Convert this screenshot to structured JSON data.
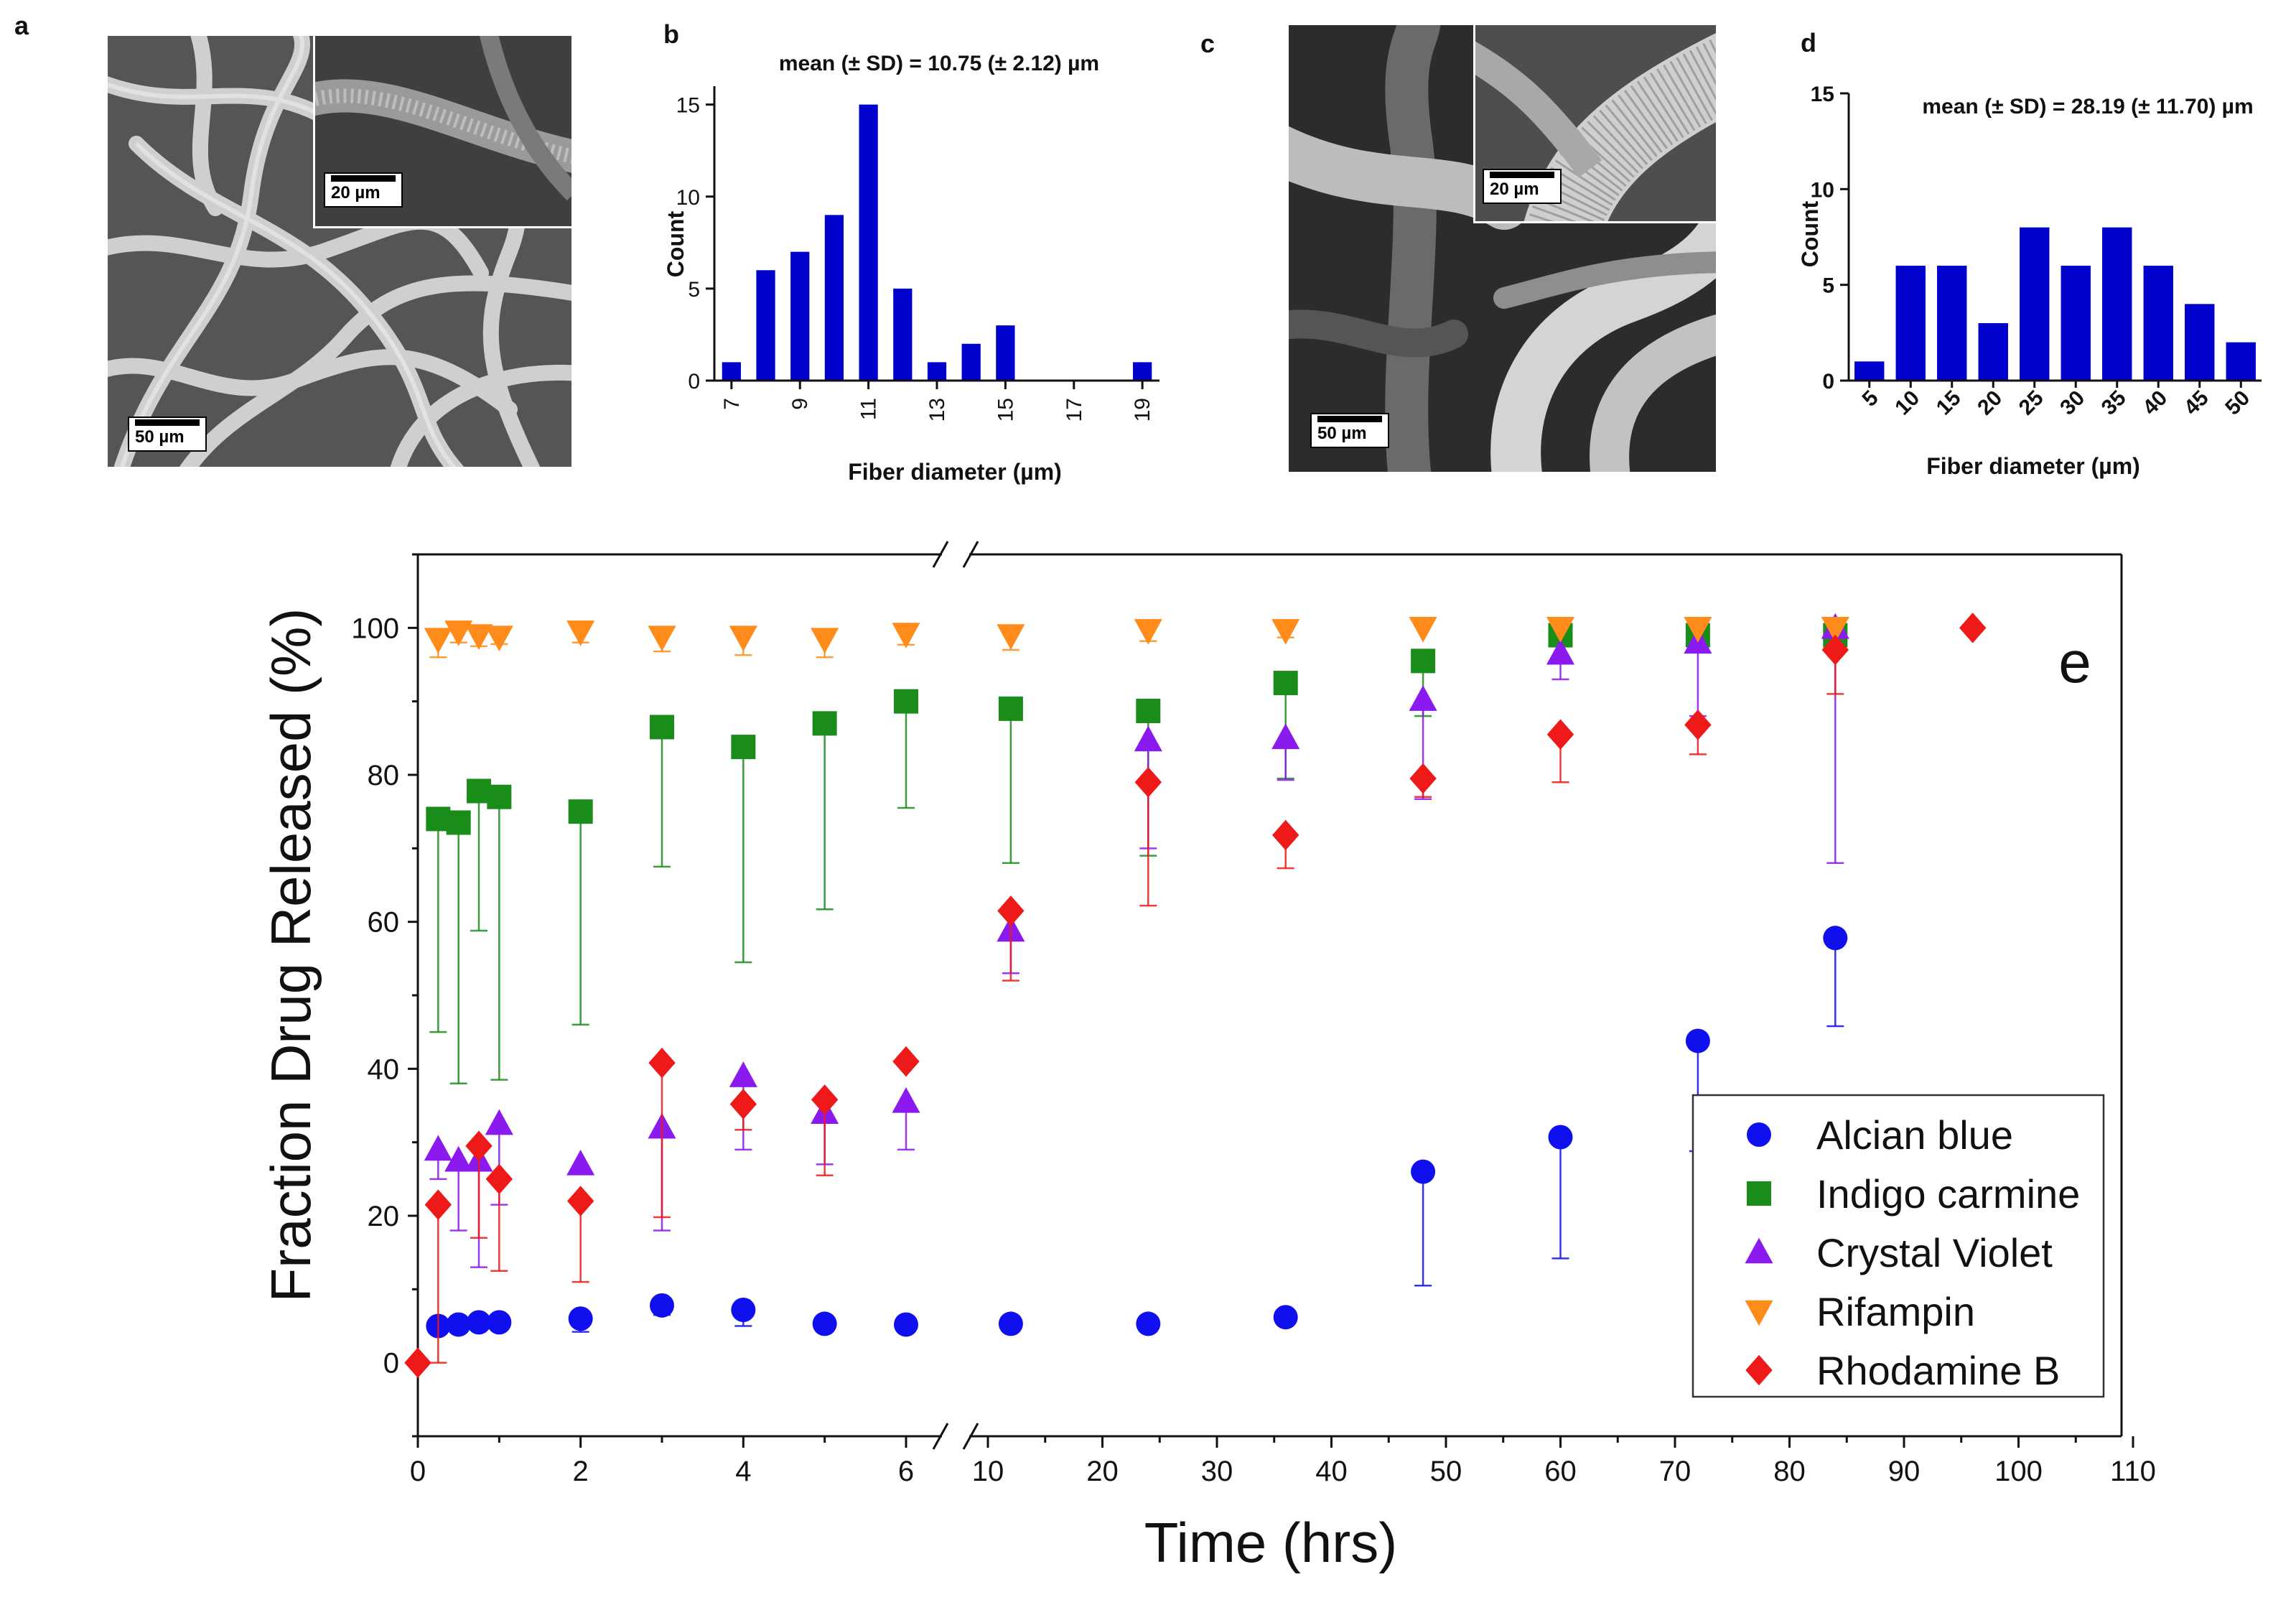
{
  "panels": {
    "a": {
      "letter": "a",
      "main_scale": "50 µm",
      "inset_scale": "20 µm"
    },
    "c": {
      "letter": "c",
      "main_scale": "50 µm",
      "inset_scale": "20 µm"
    }
  },
  "chart_data": [
    {
      "panel": "b",
      "letter": "b",
      "type": "bar",
      "title": "mean (± SD) = 10.75 (± 2.12) µm",
      "xlabel": "Fiber diameter  (µm)",
      "ylabel": "Count",
      "x": [
        7,
        8,
        9,
        10,
        11,
        12,
        13,
        14,
        15,
        16,
        17,
        18,
        19
      ],
      "values": [
        1,
        6,
        7,
        9,
        15,
        5,
        1,
        2,
        3,
        0,
        0,
        0,
        1
      ],
      "xticks": [
        7,
        9,
        11,
        13,
        15,
        17,
        19
      ],
      "yticks": [
        0,
        5,
        10,
        15
      ],
      "ylim": [
        0,
        16
      ],
      "color": "#0000cc"
    },
    {
      "panel": "d",
      "letter": "d",
      "type": "bar",
      "title": "mean (± SD) = 28.19 (± 11.70) µm",
      "xlabel": "Fiber diameter  (µm)",
      "ylabel": "Count",
      "categories": [
        "5",
        "10",
        "15",
        "20",
        "25",
        "30",
        "35",
        "40",
        "45",
        "50"
      ],
      "values": [
        1,
        6,
        6,
        3,
        8,
        6,
        8,
        6,
        4,
        2
      ],
      "yticks": [
        0,
        5,
        10,
        15
      ],
      "ylim": [
        0,
        15
      ],
      "color": "#0000cc"
    },
    {
      "panel": "e",
      "letter": "e",
      "type": "scatter",
      "xlabel": "Time (hrs)",
      "ylabel": "Fraction Drug Released (%)",
      "x_axis_break": {
        "before": 7,
        "after": 10
      },
      "xticks": [
        0,
        2,
        4,
        6,
        10,
        20,
        30,
        40,
        50,
        60,
        70,
        80,
        90,
        100,
        110
      ],
      "xticks_left": [
        0,
        2,
        4,
        6
      ],
      "xticks_right": [
        10,
        20,
        30,
        40,
        50,
        60,
        70,
        80,
        90,
        100,
        110
      ],
      "yticks": [
        0,
        20,
        40,
        60,
        80,
        100
      ],
      "ylim": [
        -10,
        110
      ],
      "legend_position": "bottom-right",
      "series": [
        {
          "name": "Alcian blue",
          "marker": "circle",
          "color": "#1010ee",
          "x": [
            0.25,
            0.5,
            0.75,
            1,
            2,
            3,
            4,
            5,
            6,
            12,
            24,
            36,
            48,
            60,
            72,
            84
          ],
          "y": [
            5,
            5.2,
            5.5,
            5.5,
            6,
            7.8,
            7.2,
            5.3,
            5.2,
            5.3,
            5.3,
            6.2,
            26,
            30.7,
            43.8,
            57.8
          ],
          "err_low": [
            0,
            0,
            0,
            0,
            1.8,
            1.3,
            2.2,
            0,
            0,
            0,
            0,
            0,
            15.5,
            16.5,
            15,
            12
          ],
          "err_high": [
            0,
            0,
            0,
            0,
            0,
            0,
            0,
            0,
            0,
            0,
            0,
            0,
            0,
            0,
            0,
            0
          ]
        },
        {
          "name": "Indigo carmine",
          "marker": "square",
          "color": "#1a8c1a",
          "x": [
            0.25,
            0.5,
            0.75,
            1,
            2,
            3,
            4,
            5,
            6,
            12,
            24,
            36,
            48,
            60,
            72,
            84
          ],
          "y": [
            74,
            73.5,
            77.8,
            77,
            75,
            86.5,
            83.8,
            87,
            90,
            89,
            88.7,
            92.5,
            95.5,
            99,
            99,
            99
          ],
          "err_low": [
            29,
            35.5,
            19,
            38.5,
            29,
            19,
            29.3,
            25.3,
            14.5,
            21,
            19.7,
            13,
            7.5,
            0,
            0,
            0
          ],
          "err_high": [
            0,
            0,
            0,
            0,
            0,
            0,
            0,
            0,
            0,
            0,
            0,
            0,
            0,
            0,
            0,
            0
          ]
        },
        {
          "name": "Crystal Violet",
          "marker": "triangle-up",
          "color": "#8a1aee",
          "x": [
            0.25,
            0.5,
            0.75,
            1,
            2,
            3,
            4,
            5,
            6,
            12,
            24,
            36,
            48,
            60,
            72,
            84
          ],
          "y": [
            29,
            27.5,
            27.5,
            32.5,
            27,
            32,
            39,
            34,
            35.5,
            58.8,
            84.7,
            85,
            90.2,
            96.5,
            98,
            100
          ],
          "err_low": [
            4,
            9.5,
            14.5,
            11,
            0,
            14,
            10,
            7,
            6.5,
            5.8,
            14.7,
            5.7,
            13.5,
            3.5,
            10,
            32
          ],
          "err_high": [
            0,
            0,
            0,
            0,
            0,
            0,
            0,
            0,
            0,
            0,
            0,
            0,
            0,
            0,
            0,
            0
          ]
        },
        {
          "name": "Rifampin",
          "marker": "triangle-down",
          "color": "#ff8c1a",
          "x": [
            0.25,
            0.5,
            0.75,
            1,
            2,
            3,
            4,
            5,
            6,
            12,
            24,
            36,
            48,
            60,
            72,
            84
          ],
          "y": [
            98.5,
            99.5,
            99,
            98.8,
            99.5,
            98.8,
            98.8,
            98.5,
            99.2,
            99,
            99.7,
            99.7,
            100,
            100,
            100,
            100
          ],
          "err_low": [
            2.5,
            1.5,
            1.5,
            1,
            1.5,
            2,
            2.5,
            2.5,
            1.5,
            2,
            1.5,
            1,
            0,
            0,
            0,
            0
          ],
          "err_high": [
            0,
            0,
            0,
            0,
            0,
            0,
            0,
            0,
            0,
            0,
            0,
            0,
            0,
            0,
            0,
            0
          ]
        },
        {
          "name": "Rhodamine B",
          "marker": "diamond",
          "color": "#ee1a1a",
          "x": [
            0,
            0.25,
            0.75,
            1,
            2,
            3,
            4,
            5,
            6,
            12,
            24,
            36,
            48,
            60,
            72,
            84,
            96
          ],
          "y": [
            0,
            21.5,
            29.5,
            25,
            22,
            40.8,
            35.2,
            35.8,
            41,
            61.5,
            79,
            71.8,
            79.5,
            85.5,
            86.8,
            97,
            100
          ],
          "err_low": [
            0,
            21.5,
            12.5,
            12.5,
            11,
            21,
            3.5,
            10.3,
            0,
            9.5,
            16.8,
            4.5,
            2.5,
            6.5,
            4,
            6,
            0
          ],
          "err_high": [
            0,
            0,
            0,
            0,
            0,
            0,
            0,
            0,
            0,
            0,
            0,
            0,
            0,
            0,
            0,
            0,
            0
          ]
        }
      ]
    }
  ]
}
